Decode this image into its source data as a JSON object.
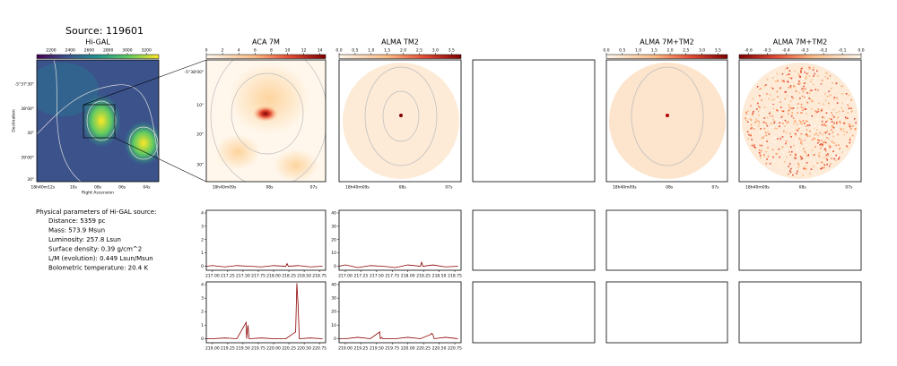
{
  "title": "Source: 119601",
  "parameters": {
    "heading": "Physical parameters of Hi-GAL source:",
    "lines": [
      "Distance: 5359 pc",
      "Mass: 573.9 Msun",
      "Luminosity: 257.8 Lsun",
      "Surface density: 0.39 g/cm^2",
      "L/M (evolution): 0.449 Lsun/Msun",
      "Bolometric temperature: 20.4 K"
    ]
  },
  "chart_data": [
    {
      "type": "image",
      "title": "Hi-GAL",
      "clim": [
        2050,
        3330
      ],
      "cticks": [
        2200,
        2400,
        2600,
        2800,
        3000,
        3200
      ],
      "x_tick_labels": [
        "18h40m12s",
        "10s",
        "08s",
        "06s",
        "04s"
      ],
      "y_tick_labels": [
        "-5°37'30\"",
        "38'00\"",
        "30\"",
        "39'00\"",
        "30\""
      ],
      "xlabel": "Right Ascension",
      "ylabel": "Declination"
    },
    {
      "type": "image",
      "title": "ACA 7M",
      "clim": [
        0,
        14.7
      ],
      "cticks": [
        0,
        2,
        4,
        6,
        8,
        10,
        12,
        14
      ],
      "x_tick_labels": [
        "18h40m09s",
        "08s",
        "07s"
      ],
      "y_tick_labels": [
        "-5°38'00\"",
        "10\"",
        "20\"",
        "30\""
      ]
    },
    {
      "type": "image",
      "title": "ALMA TM2",
      "clim": [
        0,
        3.8
      ],
      "cticks": [
        {
          "value": 0,
          "label": "0.0"
        },
        0.5,
        {
          "value": 1,
          "label": "1.0"
        },
        1.5,
        {
          "value": 2,
          "label": "2.0"
        },
        2.5,
        {
          "value": 3,
          "label": "3.0"
        },
        3.5
      ],
      "x_tick_labels": [
        "18h40m09s",
        "08s",
        "07s"
      ]
    },
    {
      "type": "image",
      "title": "ALMA 7M+TM2",
      "clim": [
        0,
        3.8
      ],
      "cticks": [
        {
          "value": 0,
          "label": "0.0"
        },
        0.5,
        {
          "value": 1,
          "label": "1.0"
        },
        1.5,
        {
          "value": 2,
          "label": "2.0"
        },
        2.5,
        {
          "value": 3,
          "label": "3.0"
        },
        3.5
      ],
      "x_tick_labels": [
        "18h40m09s",
        "08s",
        "07s"
      ]
    },
    {
      "type": "image",
      "title": "ALMA 7M+TM2",
      "clim": [
        -0.65,
        0
      ],
      "cticks": [
        -0.6,
        -0.5,
        -0.4,
        -0.3,
        -0.2,
        -0.1,
        {
          "value": 0,
          "label": "0.0"
        }
      ],
      "x_tick_labels": [
        "18h40m09s",
        "08s",
        "07s"
      ]
    },
    {
      "type": "line",
      "x": [
        216.9,
        217.0,
        217.2,
        217.4,
        217.6,
        217.8,
        218.0,
        218.2,
        218.22,
        218.24,
        218.4,
        218.6,
        218.8
      ],
      "series": [
        {
          "color": "#8b0000",
          "values": [
            0,
            0.05,
            -0.05,
            0.05,
            0,
            -0.05,
            0.05,
            0,
            0.2,
            0,
            0.05,
            -0.05,
            0
          ]
        }
      ],
      "xlim": [
        216.9,
        218.85
      ],
      "ylim": [
        -0.3,
        4.2
      ],
      "xticks": [
        {
          "value": 217,
          "label": "217.00"
        },
        217.25,
        {
          "value": 217.5,
          "label": "217.50"
        },
        217.75,
        {
          "value": 218,
          "label": "218.00"
        },
        218.25,
        {
          "value": 218.5,
          "label": "218.50"
        },
        218.75
      ],
      "yticks": [
        0,
        1,
        2,
        3,
        4
      ]
    },
    {
      "type": "line",
      "x": [
        216.9,
        217.0,
        217.2,
        217.4,
        217.6,
        217.8,
        218.0,
        218.2,
        218.22,
        218.24,
        218.4,
        218.6,
        218.8
      ],
      "series": [
        {
          "color": "#8b0000",
          "values": [
            0,
            1,
            -1,
            0.5,
            0,
            -1,
            1,
            0,
            3,
            0,
            1,
            -0.5,
            0
          ]
        }
      ],
      "xlim": [
        216.9,
        218.85
      ],
      "ylim": [
        -3,
        42
      ],
      "xticks": [
        {
          "value": 217,
          "label": "217.00"
        },
        217.25,
        {
          "value": 217.5,
          "label": "217.50"
        },
        217.75,
        {
          "value": 218,
          "label": "218.00"
        },
        218.25,
        {
          "value": 218.5,
          "label": "218.50"
        },
        218.75
      ],
      "yticks": [
        0,
        10,
        20,
        30,
        40
      ]
    },
    {
      "type": "line",
      "x": [
        218.9,
        219.0,
        219.2,
        219.4,
        219.55,
        219.56,
        219.58,
        219.6,
        219.8,
        220.0,
        220.2,
        220.36,
        220.38,
        220.4,
        220.42,
        220.6,
        220.8
      ],
      "series": [
        {
          "color": "#8b0000",
          "values": [
            0,
            0,
            0.05,
            0,
            1.2,
            0,
            1.0,
            0,
            0.05,
            0,
            0,
            0.5,
            4.1,
            2.5,
            0,
            0.05,
            0
          ]
        }
      ],
      "xlim": [
        218.9,
        220.85
      ],
      "ylim": [
        -0.3,
        4.2
      ],
      "xticks": [
        {
          "value": 219,
          "label": "219.00"
        },
        219.25,
        {
          "value": 219.5,
          "label": "219.50"
        },
        219.75,
        {
          "value": 220,
          "label": "220.00"
        },
        220.25,
        {
          "value": 220.5,
          "label": "220.50"
        },
        220.75
      ],
      "yticks": [
        0,
        1,
        2,
        3,
        4
      ]
    },
    {
      "type": "line",
      "x": [
        218.9,
        219.0,
        219.2,
        219.4,
        219.55,
        219.56,
        219.58,
        219.6,
        219.8,
        220.0,
        220.2,
        220.36,
        220.38,
        220.4,
        220.42,
        220.6,
        220.8
      ],
      "series": [
        {
          "color": "#8b0000",
          "values": [
            0,
            0,
            1,
            0,
            5,
            0,
            1,
            0,
            0,
            1,
            0,
            3,
            4,
            3,
            0,
            1,
            0
          ]
        }
      ],
      "xlim": [
        218.9,
        220.85
      ],
      "ylim": [
        -3,
        42
      ],
      "xticks": [
        {
          "value": 219,
          "label": "219.00"
        },
        219.25,
        {
          "value": 219.5,
          "label": "219.50"
        },
        219.75,
        {
          "value": 220,
          "label": "220.00"
        },
        220.25,
        {
          "value": 220.5,
          "label": "220.50"
        },
        220.75
      ],
      "yticks": [
        0,
        10,
        20,
        30,
        40
      ]
    }
  ]
}
